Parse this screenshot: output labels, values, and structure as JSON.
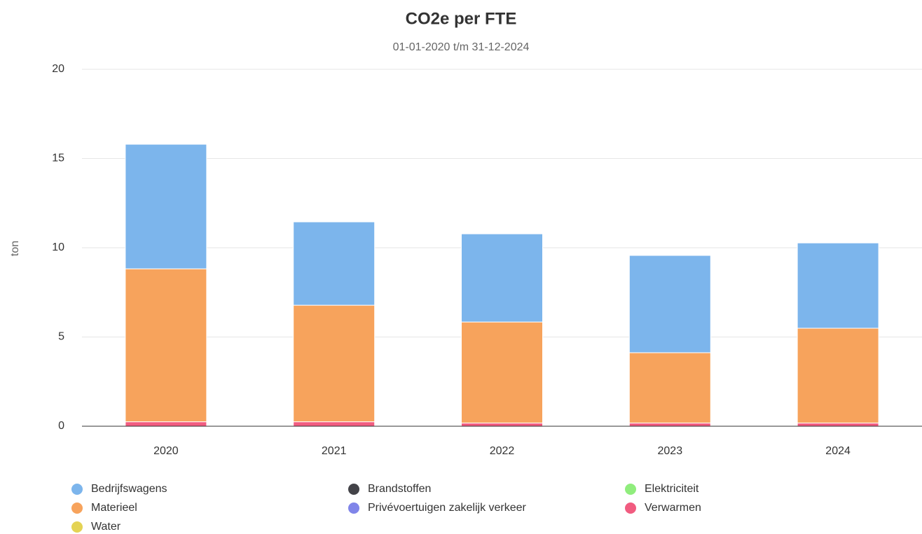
{
  "chart_data": {
    "type": "bar",
    "stacked": true,
    "title": "CO2e per FTE",
    "subtitle": "01-01-2020 t/m 31-12-2024",
    "y_label": "ton",
    "categories": [
      "2020",
      "2021",
      "2022",
      "2023",
      "2024"
    ],
    "series": [
      {
        "name": "Bedrijfswagens",
        "color": "#7cb5ec",
        "values": [
          6.98,
          4.67,
          4.94,
          5.45,
          4.78
        ]
      },
      {
        "name": "Brandstoffen",
        "color": "#434348",
        "values": [
          0,
          0,
          0,
          0,
          0
        ]
      },
      {
        "name": "Elektriciteit",
        "color": "#90ed7d",
        "values": [
          0,
          0,
          0,
          0,
          0
        ]
      },
      {
        "name": "Materieel",
        "color": "#f7a35c",
        "values": [
          8.57,
          6.53,
          5.66,
          3.94,
          5.31
        ]
      },
      {
        "name": "Privévoertuigen zakelijk verkeer",
        "color": "#8085e9",
        "values": [
          0,
          0,
          0,
          0,
          0
        ]
      },
      {
        "name": "Verwarmen",
        "color": "#f15c80",
        "values": [
          0.25,
          0.25,
          0.18,
          0.18,
          0.18
        ]
      },
      {
        "name": "Water",
        "color": "#e4d354",
        "values": [
          0,
          0,
          0,
          0,
          0
        ]
      }
    ],
    "ylim": [
      0,
      20
    ],
    "yticks": [
      0,
      5,
      10,
      15,
      20
    ],
    "grid": true
  }
}
